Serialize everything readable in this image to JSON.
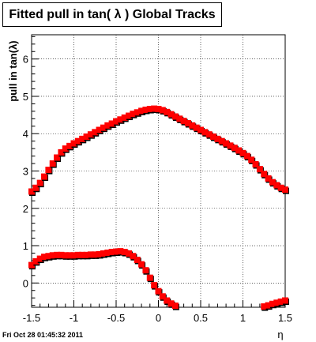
{
  "footer": {
    "timestamp": "Fri Oct 28 01:45:32 2011"
  },
  "chart_data": {
    "type": "scatter",
    "title": "Fitted pull in tan( λ )  Global Tracks",
    "xlabel": "η",
    "ylabel": "pull in tan(λ)",
    "xlim": [
      -1.5,
      1.5
    ],
    "ylim": [
      -0.65,
      6.65
    ],
    "x_ticks": [
      -1.5,
      -1,
      -0.5,
      0,
      0.5,
      1,
      1.5
    ],
    "x_tick_labels": [
      "-1.5",
      "-1",
      "-0.5",
      "0",
      "0.5",
      "1",
      "1.5"
    ],
    "y_ticks": [
      0,
      1,
      2,
      3,
      4,
      5,
      6
    ],
    "y_tick_labels": [
      "0",
      "1",
      "2",
      "3",
      "4",
      "5",
      "6"
    ],
    "grid": true,
    "colors": {
      "marker": "#ff0000",
      "reference": "#000000"
    },
    "series": [
      {
        "values": [
          [
            -1.5,
            2.45
          ],
          [
            -1.45,
            2.55
          ],
          [
            -1.4,
            2.68
          ],
          [
            -1.35,
            2.85
          ],
          [
            -1.3,
            3.03
          ],
          [
            -1.25,
            3.2
          ],
          [
            -1.2,
            3.36
          ],
          [
            -1.15,
            3.5
          ],
          [
            -1.1,
            3.6
          ],
          [
            -1.05,
            3.67
          ],
          [
            -1.0,
            3.74
          ],
          [
            -0.95,
            3.8
          ],
          [
            -0.9,
            3.86
          ],
          [
            -0.85,
            3.92
          ],
          [
            -0.8,
            3.98
          ],
          [
            -0.75,
            4.04
          ],
          [
            -0.7,
            4.1
          ],
          [
            -0.65,
            4.16
          ],
          [
            -0.6,
            4.22
          ],
          [
            -0.55,
            4.27
          ],
          [
            -0.5,
            4.33
          ],
          [
            -0.45,
            4.38
          ],
          [
            -0.4,
            4.43
          ],
          [
            -0.35,
            4.48
          ],
          [
            -0.3,
            4.53
          ],
          [
            -0.25,
            4.57
          ],
          [
            -0.2,
            4.61
          ],
          [
            -0.15,
            4.64
          ],
          [
            -0.1,
            4.66
          ],
          [
            -0.05,
            4.67
          ],
          [
            0.0,
            4.66
          ],
          [
            0.05,
            4.63
          ],
          [
            0.1,
            4.58
          ],
          [
            0.15,
            4.52
          ],
          [
            0.2,
            4.46
          ],
          [
            0.25,
            4.4
          ],
          [
            0.3,
            4.34
          ],
          [
            0.35,
            4.28
          ],
          [
            0.4,
            4.22
          ],
          [
            0.45,
            4.16
          ],
          [
            0.5,
            4.1
          ],
          [
            0.55,
            4.04
          ],
          [
            0.6,
            3.98
          ],
          [
            0.65,
            3.92
          ],
          [
            0.7,
            3.86
          ],
          [
            0.75,
            3.8
          ],
          [
            0.8,
            3.74
          ],
          [
            0.85,
            3.68
          ],
          [
            0.9,
            3.62
          ],
          [
            0.95,
            3.55
          ],
          [
            1.0,
            3.48
          ],
          [
            1.05,
            3.4
          ],
          [
            1.1,
            3.3
          ],
          [
            1.15,
            3.18
          ],
          [
            1.2,
            3.05
          ],
          [
            1.25,
            2.92
          ],
          [
            1.3,
            2.8
          ],
          [
            1.35,
            2.7
          ],
          [
            1.4,
            2.62
          ],
          [
            1.45,
            2.55
          ],
          [
            1.5,
            2.5
          ]
        ]
      },
      {
        "values": [
          [
            -1.5,
            0.48
          ],
          [
            -1.45,
            0.58
          ],
          [
            -1.4,
            0.65
          ],
          [
            -1.35,
            0.7
          ],
          [
            -1.3,
            0.72
          ],
          [
            -1.25,
            0.74
          ],
          [
            -1.2,
            0.75
          ],
          [
            -1.15,
            0.75
          ],
          [
            -1.1,
            0.74
          ],
          [
            -1.05,
            0.74
          ],
          [
            -1.0,
            0.74
          ],
          [
            -0.95,
            0.75
          ],
          [
            -0.9,
            0.75
          ],
          [
            -0.85,
            0.75
          ],
          [
            -0.8,
            0.76
          ],
          [
            -0.75,
            0.76
          ],
          [
            -0.7,
            0.77
          ],
          [
            -0.65,
            0.79
          ],
          [
            -0.6,
            0.81
          ],
          [
            -0.55,
            0.83
          ],
          [
            -0.5,
            0.84
          ],
          [
            -0.45,
            0.85
          ],
          [
            -0.4,
            0.83
          ],
          [
            -0.35,
            0.79
          ],
          [
            -0.3,
            0.72
          ],
          [
            -0.25,
            0.62
          ],
          [
            -0.2,
            0.5
          ],
          [
            -0.15,
            0.34
          ],
          [
            -0.1,
            0.14
          ],
          [
            -0.05,
            -0.06
          ],
          [
            0.0,
            -0.22
          ],
          [
            0.05,
            -0.36
          ],
          [
            0.1,
            -0.47
          ],
          [
            0.15,
            -0.55
          ],
          [
            0.2,
            -0.61
          ],
          [
            1.25,
            -0.63
          ],
          [
            1.3,
            -0.6
          ],
          [
            1.35,
            -0.56
          ],
          [
            1.4,
            -0.53
          ],
          [
            1.45,
            -0.5
          ],
          [
            1.5,
            -0.47
          ]
        ]
      }
    ]
  }
}
